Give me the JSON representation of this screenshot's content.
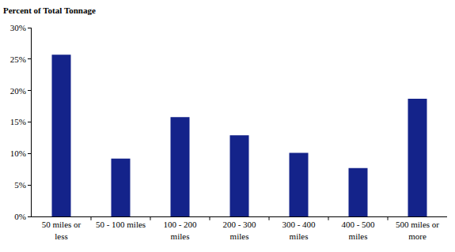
{
  "chart_data": {
    "type": "bar",
    "y_label": "Percent of Total Tonnage",
    "categories": [
      "50 miles or less",
      "50 - 100 miles",
      "100 - 200 miles",
      "200 - 300 miles",
      "300 - 400 miles",
      "400 - 500 miles",
      "500 miles or more"
    ],
    "values": [
      25.7,
      9.2,
      15.8,
      12.9,
      10.1,
      7.7,
      18.7
    ],
    "color": "#14238a",
    "ylim": [
      0,
      30
    ],
    "yticks": [
      {
        "value": 0,
        "label": "0%"
      },
      {
        "value": 5,
        "label": "5%"
      },
      {
        "value": 10,
        "label": "10%"
      },
      {
        "value": 15,
        "label": "15%"
      },
      {
        "value": 20,
        "label": "20%"
      },
      {
        "value": 25,
        "label": "25%"
      },
      {
        "value": 30,
        "label": "30%"
      }
    ],
    "grid": false
  }
}
